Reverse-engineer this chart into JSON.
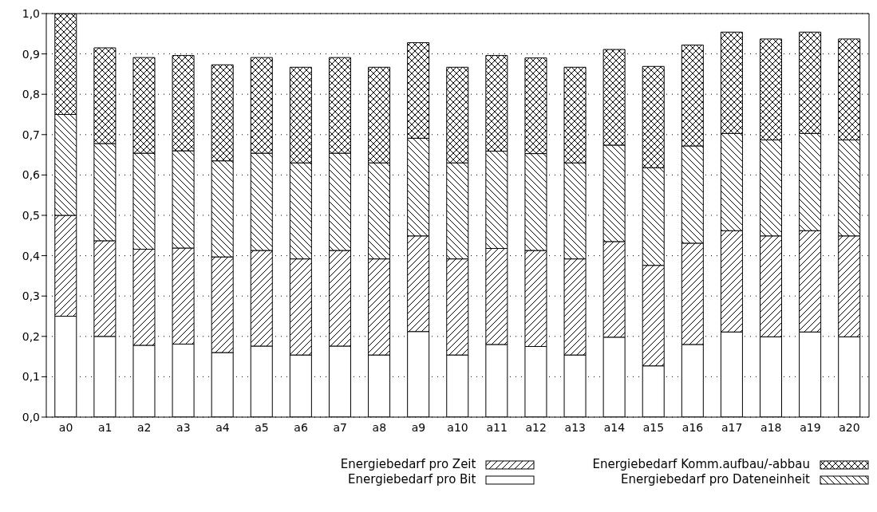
{
  "chart_data": {
    "type": "bar",
    "stacked": true,
    "categories": [
      "a0",
      "a1",
      "a2",
      "a3",
      "a4",
      "a5",
      "a6",
      "a7",
      "a8",
      "a9",
      "a10",
      "a11",
      "a12",
      "a13",
      "a14",
      "a15",
      "a16",
      "a17",
      "a18",
      "a19",
      "a20"
    ],
    "series": [
      {
        "name": "Energiebedarf pro Bit",
        "color": "#ffffff",
        "values": [
          0.25,
          0.2,
          0.178,
          0.181,
          0.16,
          0.176,
          0.154,
          0.176,
          0.154,
          0.212,
          0.154,
          0.18,
          0.175,
          0.154,
          0.198,
          0.127,
          0.18,
          0.211,
          0.199,
          0.211,
          0.199
        ]
      },
      {
        "name": "Energiebedarf pro Zeit",
        "color": "#000000",
        "values": [
          0.25,
          0.237,
          0.238,
          0.238,
          0.237,
          0.237,
          0.238,
          0.237,
          0.238,
          0.237,
          0.238,
          0.238,
          0.238,
          0.238,
          0.237,
          0.249,
          0.251,
          0.251,
          0.25,
          0.251,
          0.25
        ]
      },
      {
        "name": "Energiebedarf pro Dateneinheit",
        "color": "#000000",
        "values": [
          0.25,
          0.241,
          0.238,
          0.241,
          0.238,
          0.241,
          0.238,
          0.241,
          0.238,
          0.242,
          0.238,
          0.241,
          0.24,
          0.238,
          0.239,
          0.242,
          0.241,
          0.241,
          0.238,
          0.241,
          0.238
        ]
      },
      {
        "name": "Energiebedarf Komm.aufbau/-abbau",
        "color": "#000000",
        "values": [
          0.25,
          0.237,
          0.237,
          0.236,
          0.238,
          0.237,
          0.237,
          0.237,
          0.237,
          0.237,
          0.237,
          0.237,
          0.237,
          0.237,
          0.237,
          0.251,
          0.25,
          0.251,
          0.25,
          0.251,
          0.25
        ]
      }
    ],
    "ylim": [
      0,
      1
    ],
    "yticks": [
      {
        "value": 0,
        "label": "0,0"
      },
      {
        "value": 0.1,
        "label": "0,1"
      },
      {
        "value": 0.2,
        "label": "0,2"
      },
      {
        "value": 0.3,
        "label": "0,3"
      },
      {
        "value": 0.4,
        "label": "0,4"
      },
      {
        "value": 0.5,
        "label": "0,5"
      },
      {
        "value": 0.6,
        "label": "0,6"
      },
      {
        "value": 0.7,
        "label": "0,7"
      },
      {
        "value": 0.8,
        "label": "0,8"
      },
      {
        "value": 0.9,
        "label": "0,9"
      },
      {
        "value": 1,
        "label": "1,0"
      }
    ],
    "grid": "y",
    "legend": "bottom"
  }
}
